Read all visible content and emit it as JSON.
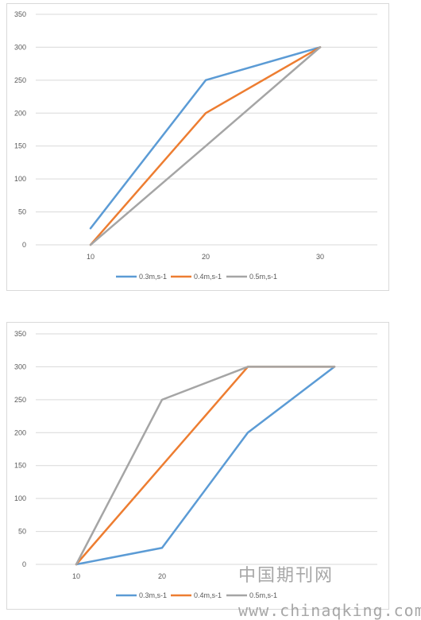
{
  "chart_data": [
    {
      "type": "line",
      "title": "",
      "xlabel": "",
      "ylabel": "",
      "categories": [
        "10",
        "20",
        "30"
      ],
      "ylim": [
        0,
        350
      ],
      "yticks": [
        0,
        50,
        100,
        150,
        200,
        250,
        300,
        350
      ],
      "grid": true,
      "legend": "bottom",
      "series": [
        {
          "name": "0.3m,s-1",
          "values": [
            25,
            250,
            300
          ],
          "color": "#5b9bd5"
        },
        {
          "name": "0.4m,s-1",
          "values": [
            0,
            200,
            300
          ],
          "color": "#ed7d31"
        },
        {
          "name": "0.5m,s-1",
          "values": [
            0,
            150,
            300
          ],
          "color": "#a5a5a5"
        }
      ]
    },
    {
      "type": "line",
      "title": "",
      "xlabel": "",
      "ylabel": "",
      "categories": [
        "10",
        "20",
        "",
        ""
      ],
      "ylim": [
        0,
        350
      ],
      "yticks": [
        0,
        50,
        100,
        150,
        200,
        250,
        300,
        350
      ],
      "grid": true,
      "legend": "bottom",
      "series": [
        {
          "name": "0.3m,s-1",
          "values": [
            0,
            25,
            200,
            300
          ],
          "color": "#5b9bd5"
        },
        {
          "name": "0.4m,s-1",
          "values": [
            0,
            150,
            300,
            300
          ],
          "color": "#ed7d31"
        },
        {
          "name": "0.5m,s-1",
          "values": [
            0,
            250,
            300,
            300
          ],
          "color": "#a5a5a5"
        }
      ]
    }
  ],
  "watermark": {
    "cn": "中国期刊网",
    "url": "www.chinaqking.com"
  }
}
